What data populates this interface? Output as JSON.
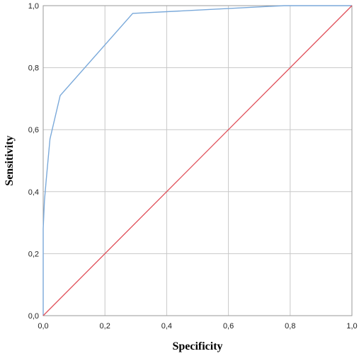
{
  "chart_data": {
    "type": "line",
    "xlabel": "Specificity",
    "ylabel": "Sensitivity",
    "xlim": [
      0.0,
      1.0
    ],
    "ylim": [
      0.0,
      1.0
    ],
    "grid": true,
    "x_ticks": [
      "0,0",
      "0,2",
      "0,4",
      "0,6",
      "0,8",
      "1,0"
    ],
    "y_ticks": [
      "0,0",
      "0,2",
      "0,4",
      "0,6",
      "0,8",
      "1,0"
    ],
    "tick_values": [
      0.0,
      0.2,
      0.4,
      0.6,
      0.8,
      1.0
    ],
    "series": [
      {
        "color": "#7aa9da",
        "x": [
          0.0,
          0.0,
          0.004,
          0.01,
          0.022,
          0.055,
          0.29,
          0.78,
          1.0
        ],
        "y": [
          0.0,
          0.28,
          0.37,
          0.44,
          0.57,
          0.71,
          0.975,
          1.0,
          1.0
        ]
      },
      {
        "color": "#e0505a",
        "x": [
          0.0,
          1.0
        ],
        "y": [
          0.0,
          1.0
        ]
      }
    ]
  }
}
